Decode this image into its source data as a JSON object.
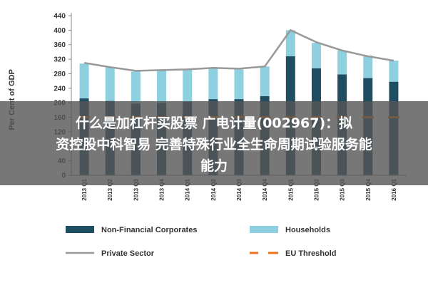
{
  "chart_data": {
    "type": "bar",
    "ylabel": "Per Cent of GDP",
    "xlabel": "",
    "ylim": [
      0,
      440
    ],
    "yticks": [
      0,
      40,
      80,
      120,
      160,
      200,
      240,
      280,
      320,
      360,
      400,
      440
    ],
    "categories": [
      "2013 Q1",
      "2013 Q2",
      "2013 Q3",
      "2013 Q4",
      "2014 Q1",
      "2014 Q2",
      "2014 Q3",
      "2014 Q4",
      "2015 Q1",
      "2015 Q2",
      "2015 Q3",
      "2015 Q4",
      "2016 Q1"
    ],
    "series": [
      {
        "name": "Non-Financial Corporates",
        "kind": "stacked-bar",
        "color": "#1f4e63",
        "values": [
          212,
          205,
          198,
          200,
          203,
          210,
          210,
          218,
          328,
          295,
          278,
          268,
          258
        ]
      },
      {
        "name": "Households",
        "kind": "stacked-bar",
        "color": "#8ecfe0",
        "values": [
          96,
          92,
          88,
          90,
          88,
          84,
          82,
          82,
          72,
          70,
          66,
          62,
          58
        ]
      },
      {
        "name": "Private Sector",
        "kind": "line",
        "color": "#999999",
        "values": [
          310,
          298,
          288,
          290,
          292,
          296,
          294,
          300,
          400,
          367,
          344,
          328,
          316
        ]
      },
      {
        "name": "EU Threshold",
        "kind": "dashed-line",
        "color": "#e8731c",
        "values": [
          160,
          160,
          160,
          160,
          160,
          160,
          160,
          160,
          160,
          160,
          160,
          160,
          160
        ]
      }
    ],
    "legend": "bottom",
    "grid": false
  },
  "overlay": {
    "line1": "什么是加杠杆买股票 广电计量(002967)：拟",
    "line2": "资控股中科智易 完善特殊行业全生命周期试验服务能",
    "line3": "能力"
  }
}
